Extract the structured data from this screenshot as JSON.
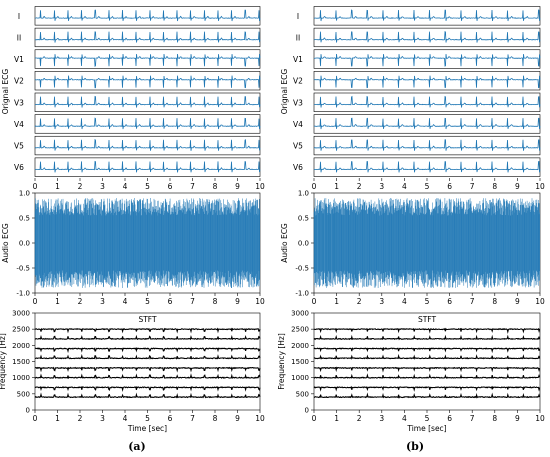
{
  "chart_data": [
    {
      "type": "line",
      "panel": "a",
      "ylabel": "Orignal ECG",
      "leads": [
        "I",
        "II",
        "V1",
        "V2",
        "V3",
        "V4",
        "V5",
        "V6"
      ],
      "series_color": "#1f77b4",
      "xlim": [
        0,
        10
      ],
      "xticks": [
        "0",
        "1",
        "2",
        "3",
        "4",
        "5",
        "6",
        "7",
        "8",
        "9",
        "10"
      ]
    },
    {
      "type": "line",
      "panel": "a",
      "ylabel": "Audio ECG",
      "xlim": [
        0,
        10
      ],
      "ylim": [
        -1.0,
        1.0
      ],
      "yticks": [
        "1.0",
        "0.5",
        "0.0",
        "-0.5",
        "-1.0"
      ],
      "xticks": [
        "0",
        "1",
        "2",
        "3",
        "4",
        "5",
        "6",
        "7",
        "8",
        "9",
        "10"
      ],
      "series_color": "#1f77b4"
    },
    {
      "type": "line",
      "panel": "a",
      "title": "STFT",
      "xlabel": "Time [sec]",
      "ylabel": "Frequency [Hz]",
      "xlim": [
        0,
        10
      ],
      "ylim": [
        0,
        3000
      ],
      "bands_hz": [
        400,
        700,
        1000,
        1300,
        1600,
        1900,
        2200,
        2500
      ],
      "yticks": [
        "3000",
        "2500",
        "2000",
        "1500",
        "1000",
        "500",
        "0"
      ],
      "xticks": [
        "0",
        "1",
        "2",
        "3",
        "4",
        "5",
        "6",
        "7",
        "8",
        "9",
        "10"
      ]
    },
    {
      "type": "line",
      "panel": "b",
      "ylabel": "Orignal ECG",
      "leads": [
        "I",
        "II",
        "V1",
        "V2",
        "V3",
        "V4",
        "V5",
        "V6"
      ],
      "series_color": "#1f77b4",
      "xlim": [
        0,
        10
      ],
      "xticks": [
        "0",
        "1",
        "2",
        "3",
        "4",
        "5",
        "6",
        "7",
        "8",
        "9",
        "10"
      ]
    },
    {
      "type": "line",
      "panel": "b",
      "ylabel": "Audio ECG",
      "xlim": [
        0,
        10
      ],
      "ylim": [
        -1.0,
        1.0
      ],
      "yticks": [
        "1.0",
        "0.5",
        "0.0",
        "-0.5",
        "-1.0"
      ],
      "xticks": [
        "0",
        "1",
        "2",
        "3",
        "4",
        "5",
        "6",
        "7",
        "8",
        "9",
        "10"
      ],
      "series_color": "#1f77b4"
    },
    {
      "type": "line",
      "panel": "b",
      "title": "STFT",
      "xlabel": "Time [sec]",
      "ylabel": "Frequency [Hz]",
      "xlim": [
        0,
        10
      ],
      "ylim": [
        0,
        3000
      ],
      "bands_hz": [
        400,
        700,
        1000,
        1300,
        1600,
        1900,
        2200,
        2500
      ],
      "yticks": [
        "3000",
        "2500",
        "2000",
        "1500",
        "1000",
        "500",
        "0"
      ],
      "xticks": [
        "0",
        "1",
        "2",
        "3",
        "4",
        "5",
        "6",
        "7",
        "8",
        "9",
        "10"
      ]
    }
  ],
  "captions": [
    "(a)",
    "(b)"
  ]
}
